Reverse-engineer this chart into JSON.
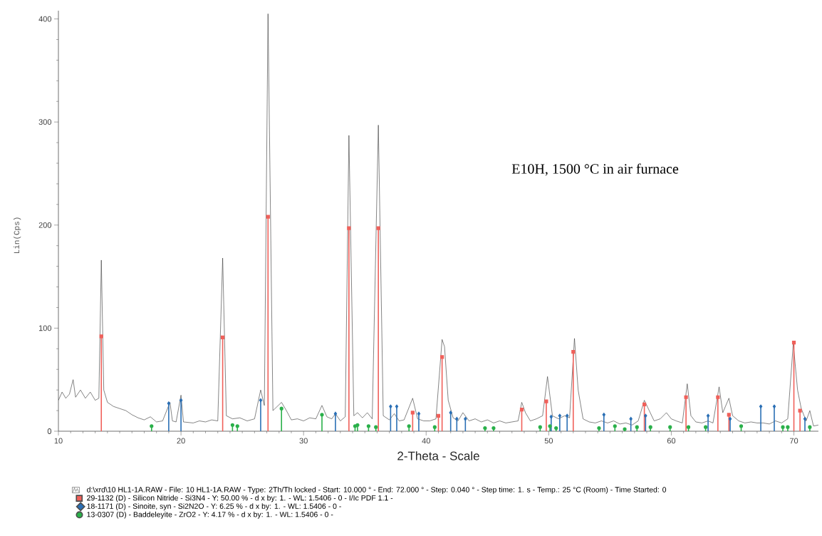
{
  "chart_data": {
    "type": "line",
    "xlabel": "2-Theta - Scale",
    "ylabel": "Lin(Cps)",
    "annotations": [
      "E10H, 1500 °C in air furnace"
    ],
    "xlim": [
      10,
      72
    ],
    "xticks": [
      10,
      20,
      30,
      40,
      50,
      60,
      70
    ],
    "ylim": [
      0,
      408
    ],
    "yticks": [
      0,
      100,
      200,
      300,
      400
    ],
    "legend": "bottom",
    "series": [
      {
        "name": "d:\\xrd\\10 HL1-1A.RAW - File: 10 HL1-1A.RAW - Type: 2Th/Th locked - Start: 10.000 ° - End: 72.000 ° - Step: 0.040 ° - Step time: 1. s - Temp.: 25 °C (Room) - Time Started: 0",
        "color": "#333333",
        "x": [
          10,
          10.3,
          10.6,
          10.9,
          11.2,
          11.4,
          11.8,
          12.2,
          12.6,
          13.0,
          13.3,
          13.5,
          13.7,
          14.0,
          14.5,
          15.0,
          15.5,
          16.0,
          16.5,
          17.0,
          17.5,
          18.0,
          18.5,
          19.1,
          19.3,
          19.6,
          20.0,
          20.2,
          21.0,
          21.5,
          22.0,
          22.5,
          23.0,
          23.4,
          23.7,
          24.2,
          24.8,
          25.4,
          26.0,
          26.5,
          26.8,
          27.1,
          27.5,
          28.2,
          28.6,
          29.0,
          29.5,
          30.0,
          30.5,
          31.0,
          31.5,
          31.9,
          32.3,
          32.6,
          33.0,
          33.4,
          33.7,
          34.1,
          34.4,
          34.8,
          35.2,
          35.6,
          36.1,
          36.5,
          37.0,
          37.4,
          37.8,
          38.2,
          38.9,
          39.3,
          39.8,
          40.3,
          40.8,
          41.3,
          41.5,
          41.8,
          42.2,
          42.6,
          43.0,
          43.5,
          44.0,
          44.5,
          45.0,
          45.5,
          46.0,
          46.5,
          47.0,
          47.5,
          47.8,
          48.1,
          48.5,
          49.0,
          49.5,
          49.9,
          50.3,
          50.8,
          51.3,
          51.7,
          52.1,
          52.4,
          52.8,
          53.3,
          53.8,
          54.3,
          54.8,
          55.3,
          55.8,
          56.3,
          56.8,
          57.3,
          57.8,
          58.2,
          58.6,
          59.1,
          59.6,
          60.0,
          60.4,
          60.9,
          61.3,
          61.6,
          62.0,
          62.5,
          63.0,
          63.4,
          63.9,
          64.2,
          64.7,
          65.0,
          65.5,
          66.0,
          66.5,
          67.0,
          67.5,
          68.0,
          68.5,
          69.0,
          69.5,
          69.95,
          70.3,
          70.6,
          71.0,
          71.3,
          71.6,
          72.0
        ],
        "values": [
          30,
          38,
          32,
          36,
          50,
          33,
          40,
          32,
          38,
          30,
          32,
          166,
          40,
          28,
          24,
          22,
          20,
          16,
          13,
          11,
          14,
          9,
          10,
          28,
          10,
          9,
          35,
          9,
          8,
          10,
          9,
          11,
          10,
          168,
          15,
          12,
          13,
          10,
          12,
          40,
          25,
          405,
          20,
          28,
          20,
          11,
          12,
          10,
          13,
          12,
          25,
          14,
          12,
          17,
          10,
          14,
          287,
          15,
          18,
          13,
          18,
          12,
          297,
          15,
          11,
          17,
          10,
          11,
          32,
          12,
          10,
          10,
          12,
          89,
          82,
          30,
          13,
          10,
          18,
          10,
          12,
          9,
          11,
          8,
          10,
          8,
          9,
          10,
          28,
          18,
          10,
          12,
          15,
          53,
          15,
          12,
          15,
          13,
          90,
          40,
          12,
          9,
          8,
          10,
          8,
          10,
          7,
          8,
          6,
          10,
          30,
          20,
          10,
          12,
          18,
          12,
          10,
          8,
          46,
          15,
          9,
          8,
          10,
          8,
          43,
          18,
          32,
          15,
          10,
          8,
          9,
          8,
          8,
          7,
          10,
          8,
          12,
          85,
          40,
          22,
          10,
          20,
          5,
          6
        ]
      },
      {
        "name": "29-1132 (D) - Silicon Nitride - Si3N4 - Y: 50.00 % - d x by: 1. - WL: 1.5406 - 0 - I/Ic PDF 1.1 -",
        "type": "lollipop",
        "color": "#f0605a",
        "marker": "square",
        "x": [
          13.5,
          23.4,
          27.1,
          33.7,
          36.1,
          38.9,
          41.0,
          41.3,
          47.8,
          49.8,
          52.0,
          57.8,
          61.2,
          63.8,
          64.7,
          70.0,
          70.5
        ],
        "values": [
          92,
          91,
          208,
          197,
          197,
          18,
          15,
          72,
          21,
          29,
          77,
          26,
          33,
          33,
          16,
          86,
          20
        ]
      },
      {
        "name": "18-1171 (D) - Sinoite, syn - Si2N2O - Y: 6.25 % - d x by: 1. - WL: 1.5406 - 0 -",
        "type": "lollipop",
        "color": "#2a6fb5",
        "marker": "diamond",
        "x": [
          19.0,
          20.0,
          26.5,
          32.6,
          37.1,
          37.6,
          39.4,
          42.0,
          42.5,
          43.2,
          50.2,
          50.9,
          51.5,
          54.5,
          56.7,
          57.9,
          63.0,
          64.8,
          67.3,
          68.4,
          70.9
        ],
        "values": [
          27,
          30,
          30,
          17,
          24,
          24,
          17,
          18,
          12,
          12,
          14,
          15,
          15,
          16,
          12,
          15,
          15,
          12,
          24,
          24,
          12
        ]
      },
      {
        "name": "13-0307 (D) - Baddeleyite - ZrO2 - Y: 4.17 % - d x by: 1. - WL: 1.5406 - 0 -",
        "type": "lollipop",
        "color": "#2ab04a",
        "marker": "circle",
        "x": [
          17.6,
          24.2,
          24.6,
          28.2,
          31.5,
          34.2,
          34.4,
          35.3,
          35.9,
          38.6,
          40.7,
          44.8,
          45.5,
          49.3,
          50.1,
          50.6,
          54.1,
          55.4,
          56.2,
          57.2,
          58.3,
          59.9,
          61.4,
          62.8,
          65.7,
          69.1,
          69.5,
          71.3
        ],
        "values": [
          5,
          6,
          5,
          22,
          16,
          5,
          6,
          5,
          4,
          5,
          4,
          3,
          3,
          4,
          5,
          3,
          3,
          5,
          2,
          4,
          4,
          4,
          4,
          4,
          5,
          4,
          4,
          4
        ]
      }
    ]
  }
}
